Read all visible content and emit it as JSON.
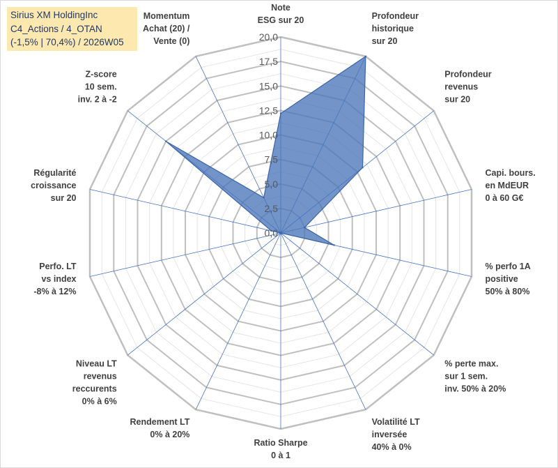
{
  "title_lines": [
    "Sirius XM HoldingInc",
    "C4_Actions / 4_OTAN",
    "(-1,5% | 70,4%) / 2026W05"
  ],
  "chart_data": {
    "type": "radar",
    "r_max": 20,
    "r_ticks": [
      "0,0",
      "2,5",
      "5,0",
      "7,5",
      "10,0",
      "12,5",
      "15,0",
      "17,5",
      "20,0"
    ],
    "categories": [
      [
        "Note",
        "ESG sur 20"
      ],
      [
        "Profondeur",
        "historique",
        "sur 20"
      ],
      [
        "Profondeur",
        "revenus",
        "sur 20"
      ],
      [
        "Capi. bours.",
        "en MdEUR",
        "0 à 60 G€"
      ],
      [
        "% perfo 1A",
        "positive",
        "50% à 80%"
      ],
      [
        "% perte max.",
        "sur 1 sem.",
        "inv. 50% à 20%"
      ],
      [
        "Volatilité LT",
        "inversée",
        "40% à 0%"
      ],
      [
        "Ratio Sharpe",
        "0 à 1"
      ],
      [
        "Rendement LT",
        "0% à 20%"
      ],
      [
        "Niveau LT",
        "revenus",
        "reccurents",
        "0% à 6%"
      ],
      [
        "Perfo. LT",
        "vs index",
        "-8% à 12%"
      ],
      [
        "Régularité",
        "croissance",
        "sur 20"
      ],
      [
        "Z-score",
        "10 sem.",
        "inv. 2 à -2"
      ],
      [
        "Momentum",
        "Achat (20) /",
        "Vente (0)"
      ]
    ],
    "series": [
      {
        "name": "Sirius XM HoldingInc",
        "values": [
          12.2,
          20.0,
          10.7,
          2.5,
          5.6,
          0,
          0,
          0,
          0,
          0,
          0,
          1.0,
          15.0,
          4.0
        ],
        "color": "#4a76b8"
      }
    ],
    "grid_color": "#bfbfbf",
    "spoke_color": "#4472c4"
  }
}
